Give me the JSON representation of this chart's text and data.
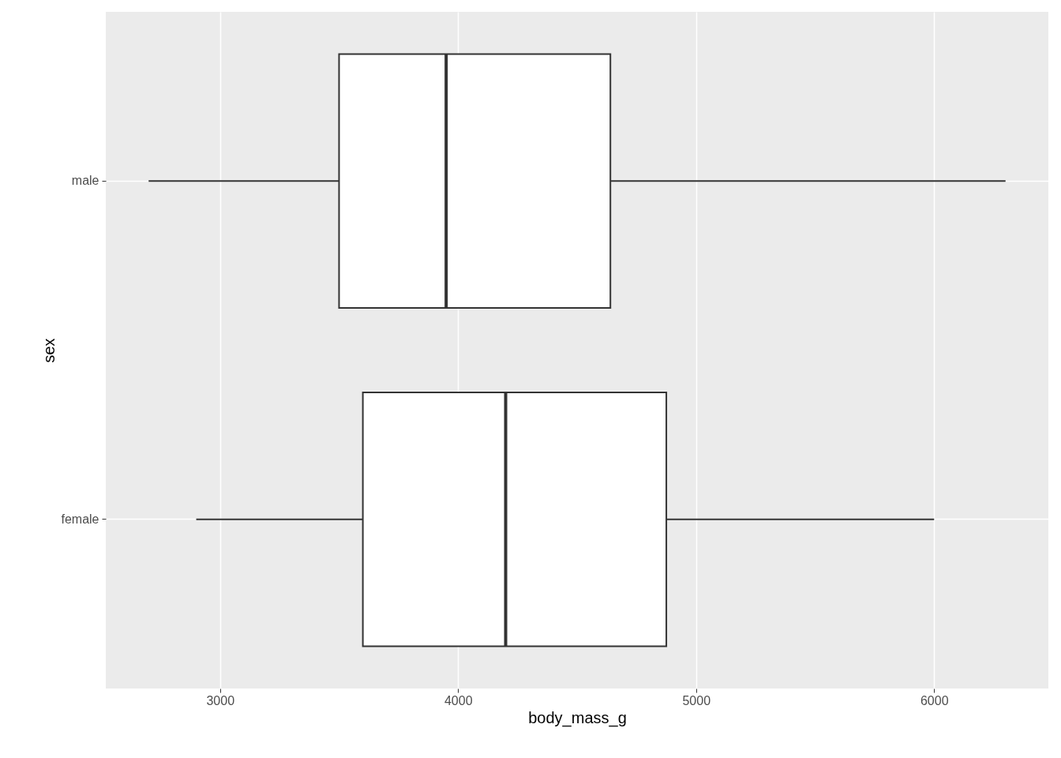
{
  "chart_data": {
    "type": "box",
    "orientation": "horizontal",
    "xlabel": "body_mass_g",
    "ylabel": "sex",
    "categories": [
      "male",
      "female"
    ],
    "boxes": [
      {
        "low": 2700,
        "q1": 3500,
        "median": 3950,
        "q3": 4640,
        "high": 6300
      },
      {
        "low": 2900,
        "q1": 3600,
        "median": 4200,
        "q3": 4875,
        "high": 6000
      }
    ],
    "color": "#ffffff",
    "xlim": [
      2520,
      6480
    ],
    "xticks": [
      3000,
      4000,
      5000,
      6000
    ],
    "grid": true
  }
}
